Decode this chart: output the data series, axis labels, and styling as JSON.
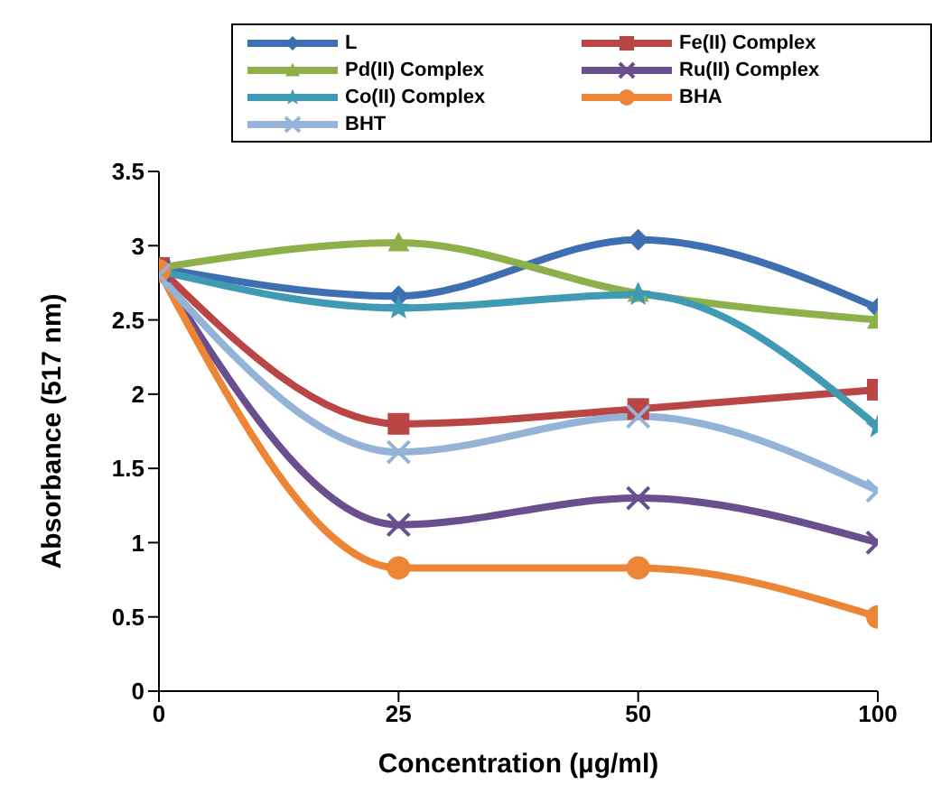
{
  "chart_data": {
    "type": "line",
    "xlabel": "Concentration (µg/ml)",
    "ylabel": "Absorbance (517 nm)",
    "categories": [
      "0",
      "25",
      "50",
      "100"
    ],
    "ylim": [
      0,
      3.5
    ],
    "yticks": [
      0,
      0.5,
      1,
      1.5,
      2,
      2.5,
      3,
      3.5
    ],
    "legend": "top",
    "line_style": "solid",
    "series": [
      {
        "name": "L",
        "color": "#3e6fb0",
        "marker": "diamond",
        "values": [
          2.85,
          2.66,
          3.04,
          2.58
        ]
      },
      {
        "name": "Fe(II) Complex",
        "color": "#b94644",
        "marker": "square",
        "values": [
          2.85,
          1.8,
          1.9,
          2.03
        ]
      },
      {
        "name": "Pd(II) Complex",
        "color": "#8db04a",
        "marker": "triangle",
        "values": [
          2.85,
          3.02,
          2.68,
          2.5
        ]
      },
      {
        "name": "Ru(II) Complex",
        "color": "#6a4f8e",
        "marker": "cross",
        "values": [
          2.83,
          1.12,
          1.3,
          1.0
        ]
      },
      {
        "name": "Co(II) Complex",
        "color": "#3f9ab4",
        "marker": "star",
        "values": [
          2.83,
          2.58,
          2.67,
          1.78
        ]
      },
      {
        "name": "BHA",
        "color": "#ec8535",
        "marker": "circle",
        "values": [
          2.83,
          0.83,
          0.83,
          0.5
        ]
      },
      {
        "name": "BHT",
        "color": "#95b3d7",
        "marker": "cross",
        "values": [
          2.8,
          1.61,
          1.85,
          1.35
        ]
      }
    ]
  }
}
